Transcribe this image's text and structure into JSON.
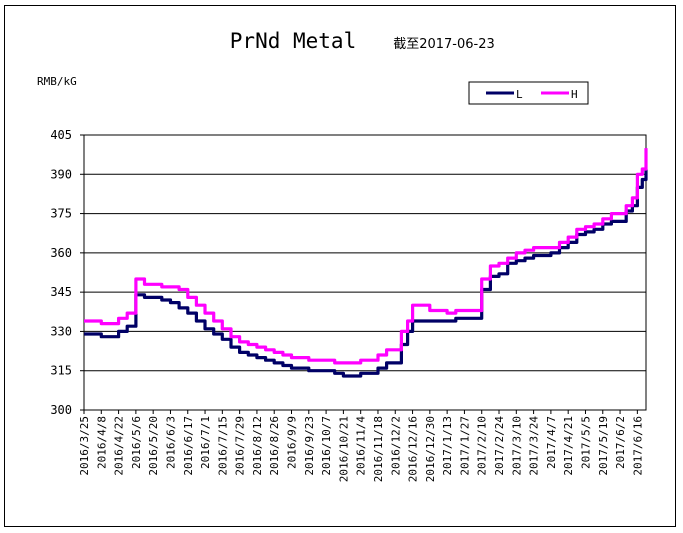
{
  "chart_data": {
    "type": "line",
    "title": "PrNd Metal",
    "subtitle": "截至2017-06-23",
    "ylabel": "RMB/kG",
    "xlabel": "",
    "ylim": [
      300,
      405
    ],
    "yticks": [
      300,
      315,
      330,
      345,
      360,
      375,
      390,
      405
    ],
    "grid": true,
    "legend_position": "top-right",
    "x_tick_labels": [
      "2016/3/25",
      "2016/4/8",
      "2016/4/22",
      "2016/5/6",
      "2016/5/20",
      "2016/6/3",
      "2016/6/17",
      "2016/7/1",
      "2016/7/15",
      "2016/7/29",
      "2016/8/12",
      "2016/8/26",
      "2016/9/9",
      "2016/9/23",
      "2016/10/7",
      "2016/10/21",
      "2016/11/4",
      "2016/11/18",
      "2016/12/2",
      "2016/12/16",
      "2016/12/30",
      "2017/1/13",
      "2017/1/27",
      "2017/2/10",
      "2017/2/24",
      "2017/3/10",
      "2017/3/24",
      "2017/4/7",
      "2017/4/21",
      "2017/5/5",
      "2017/5/19",
      "2017/6/2",
      "2017/6/16"
    ],
    "x": [
      "2016/3/25",
      "2016/4/1",
      "2016/4/8",
      "2016/4/15",
      "2016/4/22",
      "2016/4/29",
      "2016/5/6",
      "2016/5/10",
      "2016/5/13",
      "2016/5/20",
      "2016/5/27",
      "2016/6/3",
      "2016/6/10",
      "2016/6/17",
      "2016/6/24",
      "2016/7/1",
      "2016/7/8",
      "2016/7/15",
      "2016/7/22",
      "2016/7/29",
      "2016/8/5",
      "2016/8/12",
      "2016/8/19",
      "2016/8/26",
      "2016/9/2",
      "2016/9/9",
      "2016/9/16",
      "2016/9/23",
      "2016/9/30",
      "2016/10/7",
      "2016/10/14",
      "2016/10/21",
      "2016/10/28",
      "2016/11/4",
      "2016/11/11",
      "2016/11/18",
      "2016/11/25",
      "2016/12/2",
      "2016/12/7",
      "2016/12/12",
      "2016/12/16",
      "2016/12/23",
      "2016/12/30",
      "2017/1/6",
      "2017/1/13",
      "2017/1/20",
      "2017/1/27",
      "2017/2/3",
      "2017/2/8",
      "2017/2/10",
      "2017/2/17",
      "2017/2/24",
      "2017/3/3",
      "2017/3/10",
      "2017/3/17",
      "2017/3/24",
      "2017/3/31",
      "2017/4/7",
      "2017/4/14",
      "2017/4/21",
      "2017/4/28",
      "2017/5/5",
      "2017/5/12",
      "2017/5/19",
      "2017/5/26",
      "2017/6/2",
      "2017/6/7",
      "2017/6/12",
      "2017/6/16",
      "2017/6/20",
      "2017/6/23"
    ],
    "series": [
      {
        "name": "L",
        "color": "#000066",
        "values": [
          329,
          329,
          328,
          328,
          330,
          332,
          344,
          344,
          343,
          343,
          342,
          341,
          339,
          337,
          334,
          331,
          329,
          327,
          324,
          322,
          321,
          320,
          319,
          318,
          317,
          316,
          316,
          315,
          315,
          315,
          314,
          313,
          313,
          314,
          314,
          316,
          318,
          318,
          325,
          330,
          334,
          334,
          334,
          334,
          334,
          335,
          335,
          335,
          335,
          346,
          351,
          352,
          356,
          357,
          358,
          359,
          359,
          360,
          362,
          364,
          367,
          368,
          369,
          371,
          372,
          372,
          376,
          378,
          385,
          388,
          392
        ]
      },
      {
        "name": "H",
        "color": "#FF00FF",
        "values": [
          334,
          334,
          333,
          333,
          335,
          337,
          350,
          350,
          348,
          348,
          347,
          347,
          346,
          343,
          340,
          337,
          334,
          331,
          328,
          326,
          325,
          324,
          323,
          322,
          321,
          320,
          320,
          319,
          319,
          319,
          318,
          318,
          318,
          319,
          319,
          321,
          323,
          323,
          330,
          334,
          340,
          340,
          338,
          338,
          337,
          338,
          338,
          338,
          338,
          350,
          355,
          356,
          358,
          360,
          361,
          362,
          362,
          362,
          364,
          366,
          369,
          370,
          371,
          373,
          375,
          375,
          378,
          381,
          390,
          392,
          400
        ]
      }
    ]
  }
}
